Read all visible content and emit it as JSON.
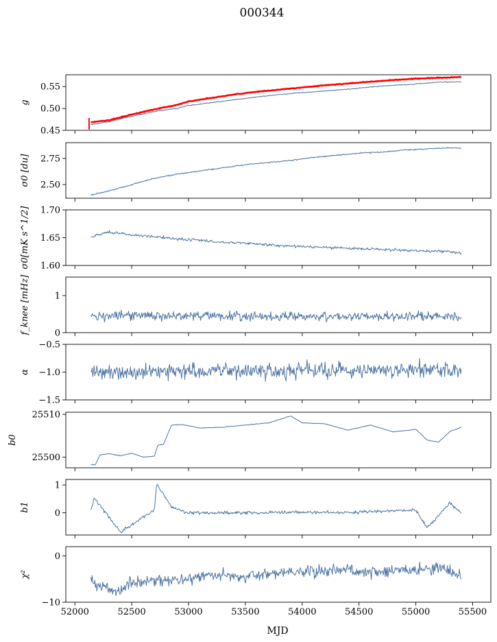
{
  "figure": {
    "title": "000344",
    "xlabel": "MJD"
  },
  "colors": {
    "series": "#4c72a4",
    "fit": "#ff0000",
    "axis": "#000000"
  },
  "chart_data": [
    {
      "type": "line",
      "panel": "g",
      "ylabel": "g",
      "xlim": [
        51920,
        55660
      ],
      "ylim": [
        0.45,
        0.577
      ],
      "yticks": [
        0.45,
        0.5,
        0.55
      ],
      "ytick_labels": [
        "0.45",
        "0.50",
        "0.55"
      ],
      "x_range": [
        52140,
        55400
      ],
      "series": [
        {
          "x": [
            52140,
            52300,
            52500,
            52700,
            52900,
            53000,
            53200,
            53400,
            53600,
            53800,
            54000,
            54200,
            54400,
            54600,
            54800,
            55000,
            55200,
            55400
          ],
          "values": [
            0.463,
            0.47,
            0.482,
            0.493,
            0.5,
            0.507,
            0.513,
            0.52,
            0.526,
            0.532,
            0.536,
            0.54,
            0.544,
            0.549,
            0.553,
            0.556,
            0.56,
            0.561
          ]
        },
        {
          "x": [
            52120,
            52300,
            52500,
            52700,
            52900,
            53000,
            53200,
            53400,
            53600,
            53800,
            54000,
            54200,
            54400,
            54600,
            54800,
            55000,
            55200,
            55400
          ],
          "values": [
            0.468,
            0.473,
            0.486,
            0.498,
            0.508,
            0.516,
            0.524,
            0.532,
            0.538,
            0.543,
            0.548,
            0.553,
            0.557,
            0.561,
            0.565,
            0.568,
            0.57,
            0.572
          ]
        }
      ]
    },
    {
      "type": "line",
      "panel": "sigma0-du",
      "ylabel": "σ0 [du]",
      "xlim": [
        51920,
        55660
      ],
      "ylim": [
        2.37,
        2.9
      ],
      "yticks": [
        2.5,
        2.75
      ],
      "ytick_labels": [
        "2.50",
        "2.75"
      ],
      "x_range": [
        52140,
        55400
      ],
      "series": [
        {
          "x": [
            52140,
            52300,
            52500,
            52700,
            52900,
            53100,
            53300,
            53500,
            53700,
            53900,
            54100,
            54300,
            54500,
            54700,
            54900,
            55100,
            55300,
            55400
          ],
          "values": [
            2.4,
            2.44,
            2.5,
            2.56,
            2.6,
            2.63,
            2.66,
            2.69,
            2.71,
            2.73,
            2.76,
            2.78,
            2.8,
            2.81,
            2.83,
            2.84,
            2.85,
            2.85
          ]
        }
      ]
    },
    {
      "type": "line",
      "panel": "sigma0-mks",
      "ylabel": "σ0[mK s^1/2]",
      "xlim": [
        51920,
        55660
      ],
      "ylim": [
        1.6,
        1.7
      ],
      "yticks": [
        1.6,
        1.65,
        1.7
      ],
      "ytick_labels": [
        "1.60",
        "1.65",
        "1.70"
      ],
      "x_range": [
        52140,
        55400
      ],
      "series": [
        {
          "x": [
            52140,
            52300,
            52500,
            52700,
            52900,
            53100,
            53300,
            53500,
            53700,
            53900,
            54100,
            54300,
            54500,
            54700,
            54900,
            55100,
            55300,
            55400
          ],
          "values": [
            1.652,
            1.66,
            1.655,
            1.652,
            1.648,
            1.645,
            1.642,
            1.64,
            1.637,
            1.635,
            1.633,
            1.632,
            1.63,
            1.629,
            1.627,
            1.626,
            1.625,
            1.622
          ]
        }
      ]
    },
    {
      "type": "line",
      "panel": "fknee",
      "ylabel": "f_knee [mHz]",
      "xlim": [
        51920,
        55660
      ],
      "ylim": [
        0,
        1.5
      ],
      "yticks": [
        0,
        1
      ],
      "ytick_labels": [
        "0",
        "1"
      ],
      "x_range": [
        52140,
        55400
      ],
      "series": [
        {
          "x": [
            52140,
            52500,
            53000,
            53500,
            54000,
            54500,
            55000,
            55400
          ],
          "values": [
            0.45,
            0.45,
            0.46,
            0.45,
            0.44,
            0.44,
            0.44,
            0.45
          ]
        }
      ]
    },
    {
      "type": "line",
      "panel": "alpha",
      "ylabel": "α",
      "xlim": [
        51920,
        55660
      ],
      "ylim": [
        -1.5,
        -0.5
      ],
      "yticks": [
        -1.5,
        -1.0,
        -0.5
      ],
      "ytick_labels": [
        "−1.5",
        "−1.0",
        "−0.5"
      ],
      "x_range": [
        52140,
        55400
      ],
      "series": [
        {
          "x": [
            52140,
            52500,
            53000,
            53500,
            54000,
            54500,
            55000,
            55400
          ],
          "values": [
            -1.0,
            -1.0,
            -0.98,
            -0.98,
            -0.97,
            -0.96,
            -0.96,
            -0.98
          ]
        }
      ]
    },
    {
      "type": "line",
      "panel": "b0",
      "ylabel": "b0",
      "xlim": [
        51920,
        55660
      ],
      "ylim": [
        25497.5,
        25510.5
      ],
      "yticks": [
        25500,
        25510
      ],
      "ytick_labels": [
        "25500",
        "25510"
      ],
      "x_range": [
        52140,
        55400
      ],
      "series": [
        {
          "x": [
            52140,
            52180,
            52220,
            52300,
            52400,
            52500,
            52600,
            52700,
            52730,
            52780,
            52850,
            52950,
            53100,
            53300,
            53500,
            53700,
            53900,
            54000,
            54200,
            54400,
            54600,
            54800,
            55000,
            55100,
            55200,
            55300,
            55400
          ],
          "values": [
            25498.3,
            25498.2,
            25500.5,
            25500.8,
            25500.3,
            25500.9,
            25500.0,
            25500.2,
            25502.8,
            25503.0,
            25507.5,
            25507.6,
            25506.8,
            25507.0,
            25507.5,
            25508.0,
            25509.6,
            25508.0,
            25507.8,
            25506.3,
            25507.5,
            25505.9,
            25506.5,
            25504.0,
            25503.5,
            25506.0,
            25507.0
          ]
        }
      ]
    },
    {
      "type": "line",
      "panel": "b1",
      "ylabel": "b1",
      "xlim": [
        51920,
        55660
      ],
      "ylim": [
        -0.8,
        1.2
      ],
      "yticks": [
        0,
        1
      ],
      "ytick_labels": [
        "0",
        "1"
      ],
      "x_range": [
        52140,
        55400
      ],
      "series": [
        {
          "x": [
            52140,
            52170,
            52400,
            52700,
            52720,
            52850,
            53000,
            53500,
            54000,
            54500,
            55000,
            55100,
            55300,
            55400
          ],
          "values": [
            0.1,
            0.55,
            -0.7,
            0.1,
            1.05,
            0.2,
            0.0,
            0.0,
            0.02,
            0.02,
            0.1,
            -0.55,
            0.35,
            0.0
          ]
        }
      ]
    },
    {
      "type": "line",
      "panel": "chi2",
      "ylabel": "χ²",
      "xlim": [
        51920,
        55660
      ],
      "ylim": [
        -10,
        2
      ],
      "yticks": [
        -10,
        0
      ],
      "ytick_labels": [
        "−10",
        "0"
      ],
      "xticks": [
        52000,
        52500,
        53000,
        53500,
        54000,
        54500,
        55000,
        55500
      ],
      "xtick_labels": [
        "52000",
        "52500",
        "53000",
        "53500",
        "54000",
        "54500",
        "55000",
        "55500"
      ],
      "x_range": [
        52140,
        55400
      ],
      "series": [
        {
          "x": [
            52140,
            52250,
            52350,
            52500,
            52700,
            53000,
            53200,
            53500,
            53800,
            54000,
            54300,
            54600,
            55000,
            55200,
            55400
          ],
          "values": [
            -5.0,
            -6.5,
            -8.0,
            -5.5,
            -5.5,
            -5.0,
            -4.0,
            -4.5,
            -3.5,
            -3.5,
            -3.0,
            -3.5,
            -3.0,
            -2.5,
            -4.0
          ]
        }
      ]
    }
  ]
}
